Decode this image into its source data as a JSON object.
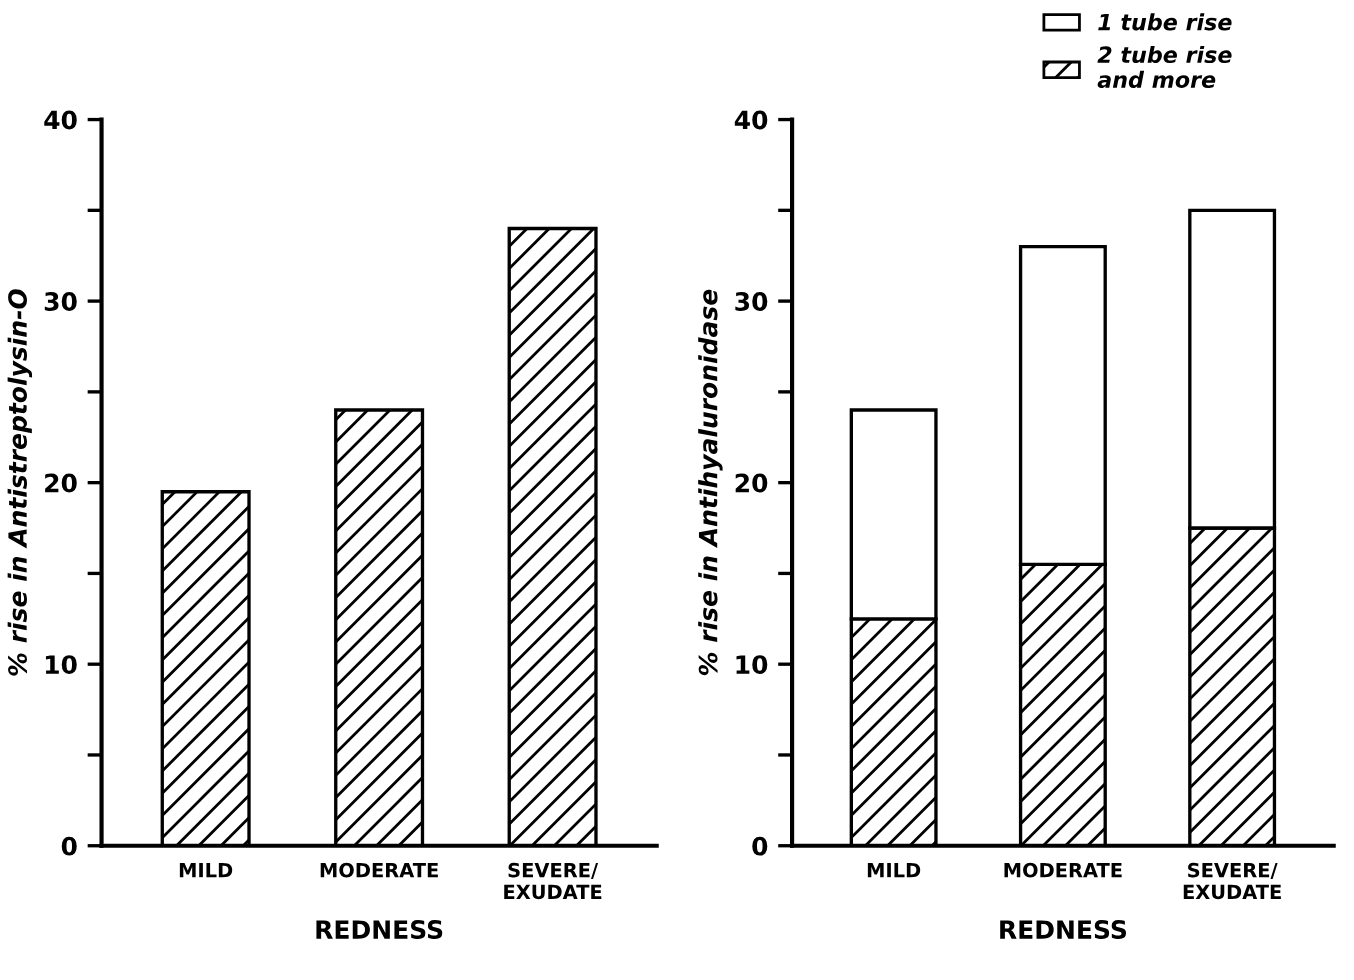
{
  "chart_data": [
    {
      "type": "bar",
      "ylabel": "% rise in Antistreptolysin-O",
      "xlabel": "REDNESS",
      "categories": [
        "MILD",
        "MODERATE",
        "SEVERE/\nEXUDATE"
      ],
      "series": [
        {
          "color": "#000000",
          "values": [
            19.5,
            24,
            34
          ]
        }
      ],
      "ylim": [
        0,
        40
      ],
      "yticks": [
        0,
        {
          "value": 5,
          "label": null
        },
        10,
        {
          "value": 15,
          "label": null
        },
        20,
        {
          "value": 25,
          "label": null
        },
        30,
        {
          "value": 35,
          "label": null
        },
        40
      ],
      "grid": false,
      "legend": false
    },
    {
      "type": "bar",
      "stacked": true,
      "ylabel": "% rise in Antihyaluronidase",
      "xlabel": "REDNESS",
      "categories": [
        "MILD",
        "MODERATE",
        "SEVERE/\nEXUDATE"
      ],
      "series": [
        {
          "name": "2 tube rise\nand more",
          "color": "#000000",
          "values": [
            12.5,
            15.5,
            17.5
          ]
        },
        {
          "name": "1 tube rise",
          "color": "#ffffff",
          "values": [
            11.5,
            17.5,
            17.5
          ]
        }
      ],
      "ylim": [
        0,
        40
      ],
      "yticks": [
        0,
        {
          "value": 5,
          "label": null
        },
        10,
        {
          "value": 15,
          "label": null
        },
        20,
        {
          "value": 25,
          "label": null
        },
        30,
        {
          "value": 35,
          "label": null
        },
        40
      ],
      "grid": false,
      "legend": "top right"
    }
  ]
}
